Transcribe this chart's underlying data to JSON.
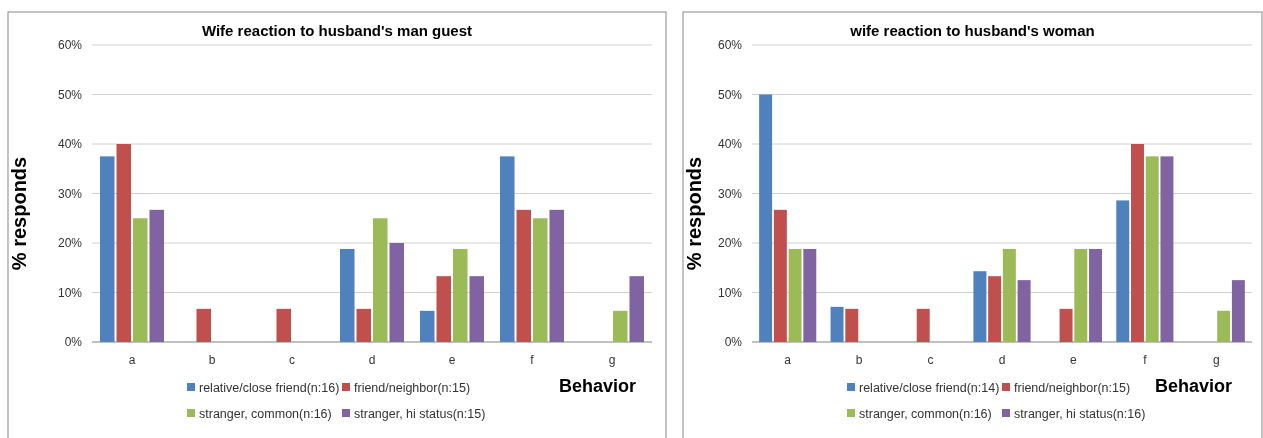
{
  "chart_data": [
    {
      "type": "bar",
      "title": "Wife reaction to husband's man guest",
      "xlabel": "Behavior",
      "ylabel": "% responds",
      "categories": [
        "a",
        "b",
        "c",
        "d",
        "e",
        "f",
        "g"
      ],
      "ylim": [
        0,
        60
      ],
      "yticks": [
        {
          "value": 0,
          "label": "0%"
        },
        {
          "value": 10,
          "label": "10%"
        },
        {
          "value": 20,
          "label": "20%"
        },
        {
          "value": 30,
          "label": "30%"
        },
        {
          "value": 40,
          "label": "40%"
        },
        {
          "value": 50,
          "label": "50%"
        },
        {
          "value": 60,
          "label": "60%"
        }
      ],
      "grid": "y",
      "legend": "bottom",
      "series": [
        {
          "name": "relative/close friend(n:16)",
          "color": "#4f81bd",
          "values": [
            37.5,
            0,
            0,
            18.8,
            6.3,
            37.5,
            0
          ]
        },
        {
          "name": "friend/neighbor(n:15)",
          "color": "#c0504d",
          "values": [
            40,
            6.7,
            6.7,
            6.7,
            13.3,
            26.7,
            0
          ]
        },
        {
          "name": "stranger, common(n:16)",
          "color": "#9bbb59",
          "values": [
            25,
            0,
            0,
            25,
            18.8,
            25,
            6.3
          ]
        },
        {
          "name": "stranger, hi status(n:15)",
          "color": "#8064a2",
          "values": [
            26.7,
            0,
            0,
            20,
            13.3,
            26.7,
            13.3
          ]
        }
      ]
    },
    {
      "type": "bar",
      "title": "wife reaction to husband's woman",
      "xlabel": "Behavior",
      "ylabel": "% responds",
      "categories": [
        "a",
        "b",
        "c",
        "d",
        "e",
        "f",
        "g"
      ],
      "ylim": [
        0,
        60
      ],
      "yticks": [
        {
          "value": 0,
          "label": "0%"
        },
        {
          "value": 10,
          "label": "10%"
        },
        {
          "value": 20,
          "label": "20%"
        },
        {
          "value": 30,
          "label": "30%"
        },
        {
          "value": 40,
          "label": "40%"
        },
        {
          "value": 50,
          "label": "50%"
        },
        {
          "value": 60,
          "label": "60%"
        }
      ],
      "grid": "y",
      "legend": "bottom",
      "series": [
        {
          "name": "relative/close friend(n:14)",
          "color": "#4f81bd",
          "values": [
            50,
            7.1,
            0,
            14.3,
            0,
            28.6,
            0
          ]
        },
        {
          "name": "friend/neighbor(n:15)",
          "color": "#c0504d",
          "values": [
            26.7,
            6.7,
            6.7,
            13.3,
            6.7,
            40,
            0
          ]
        },
        {
          "name": "stranger, common(n:16)",
          "color": "#9bbb59",
          "values": [
            18.8,
            0,
            0,
            18.8,
            18.8,
            37.5,
            6.3
          ]
        },
        {
          "name": "stranger, hi status(n:16)",
          "color": "#8064a2",
          "values": [
            18.8,
            0,
            0,
            12.5,
            18.8,
            37.5,
            12.5
          ]
        }
      ]
    }
  ]
}
